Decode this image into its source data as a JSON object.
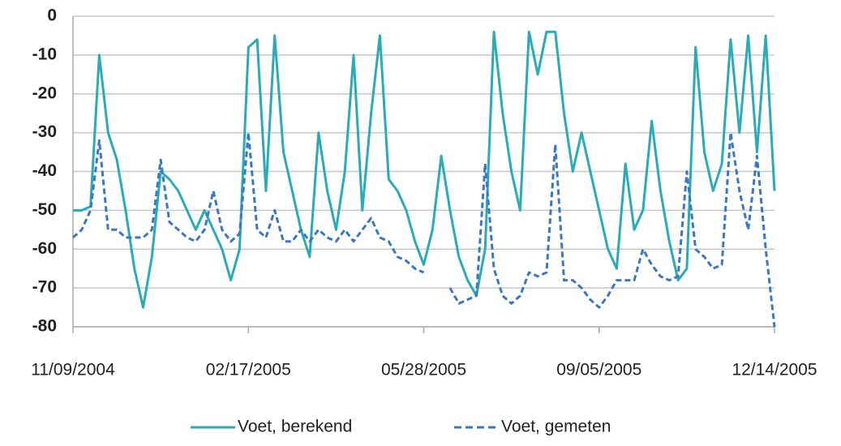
{
  "chart_data": {
    "type": "line",
    "x": [
      "11/09/2004",
      "11/14/2004",
      "11/19/2004",
      "11/24/2004",
      "11/29/2004",
      "12/04/2004",
      "12/09/2004",
      "12/14/2004",
      "12/19/2004",
      "12/24/2004",
      "12/29/2004",
      "01/03/2005",
      "01/08/2005",
      "01/13/2005",
      "01/18/2005",
      "01/23/2005",
      "01/28/2005",
      "02/02/2005",
      "02/07/2005",
      "02/12/2005",
      "02/17/2005",
      "02/22/2005",
      "02/27/2005",
      "03/04/2005",
      "03/09/2005",
      "03/14/2005",
      "03/19/2005",
      "03/24/2005",
      "03/29/2005",
      "04/03/2005",
      "04/08/2005",
      "04/13/2005",
      "04/18/2005",
      "04/23/2005",
      "04/28/2005",
      "05/03/2005",
      "05/08/2005",
      "05/13/2005",
      "05/18/2005",
      "05/23/2005",
      "05/28/2005",
      "06/02/2005",
      "06/07/2005",
      "06/12/2005",
      "06/17/2005",
      "06/22/2005",
      "06/27/2005",
      "07/02/2005",
      "07/07/2005",
      "07/12/2005",
      "07/17/2005",
      "07/22/2005",
      "07/27/2005",
      "08/01/2005",
      "08/06/2005",
      "08/11/2005",
      "08/16/2005",
      "08/21/2005",
      "08/26/2005",
      "08/31/2005",
      "09/05/2005",
      "09/10/2005",
      "09/15/2005",
      "09/20/2005",
      "09/25/2005",
      "09/30/2005",
      "10/05/2005",
      "10/10/2005",
      "10/15/2005",
      "10/20/2005",
      "10/25/2005",
      "10/30/2005",
      "11/04/2005",
      "11/09/2005",
      "11/14/2005",
      "11/19/2005",
      "11/24/2005",
      "11/29/2005",
      "12/04/2005",
      "12/09/2005",
      "12/14/2005"
    ],
    "series": [
      {
        "name": "Voet, berekend",
        "color": "#2aabb8",
        "dash": false,
        "values": [
          -50,
          -50,
          -49,
          -10,
          -30,
          -37,
          -50,
          -65,
          -75,
          -62,
          -40,
          -42,
          -45,
          -50,
          -55,
          -50,
          -55,
          -60,
          -68,
          -60,
          -8,
          -6,
          -45,
          -5,
          -35,
          -45,
          -55,
          -62,
          -30,
          -45,
          -55,
          -40,
          -10,
          -50,
          -25,
          -5,
          -42,
          -45,
          -50,
          -58,
          -64,
          -55,
          -36,
          -50,
          -62,
          -68,
          -72,
          -60,
          -4,
          -25,
          -40,
          -50,
          -4,
          -15,
          -4,
          -4,
          -25,
          -40,
          -30,
          -40,
          -50,
          -60,
          -65,
          -38,
          -55,
          -50,
          -27,
          -45,
          -58,
          -68,
          -65,
          -8,
          -35,
          -45,
          -38,
          -6,
          -30,
          -5,
          -35,
          -5,
          -45
        ]
      },
      {
        "name": "Voet, gemeten",
        "color": "#3a78c4",
        "dash": true,
        "values": [
          -57,
          -55,
          -50,
          -32,
          -55,
          -55,
          -57,
          -57,
          -57,
          -55,
          -37,
          -53,
          -55,
          -57,
          -58,
          -55,
          -45,
          -55,
          -58,
          -56,
          -30,
          -55,
          -57,
          -50,
          -58,
          -58,
          -55,
          -58,
          -55,
          -57,
          -58,
          -55,
          -58,
          -55,
          -52,
          -57,
          -58,
          -62,
          -63,
          -65,
          -66,
          null,
          null,
          -70,
          -74,
          -73,
          -72,
          -38,
          -65,
          -72,
          -74,
          -72,
          -66,
          -67,
          -66,
          -33,
          -68,
          -68,
          -70,
          -73,
          -75,
          -72,
          -68,
          -68,
          -68,
          -60,
          -64,
          -67,
          -68,
          -67,
          -40,
          -60,
          -62,
          -65,
          -64,
          -30,
          -45,
          -55,
          -36,
          -60,
          -80
        ]
      }
    ],
    "xlim": [
      "11/09/2004",
      "12/14/2005"
    ],
    "xticks": [
      "11/09/2004",
      "02/17/2005",
      "05/28/2005",
      "09/05/2005",
      "12/14/2005"
    ],
    "ylim": [
      -80,
      0
    ],
    "yticks": [
      0,
      -10,
      -20,
      -30,
      -40,
      -50,
      -60,
      -70,
      -80
    ],
    "grid": true,
    "legend": "bottom"
  }
}
